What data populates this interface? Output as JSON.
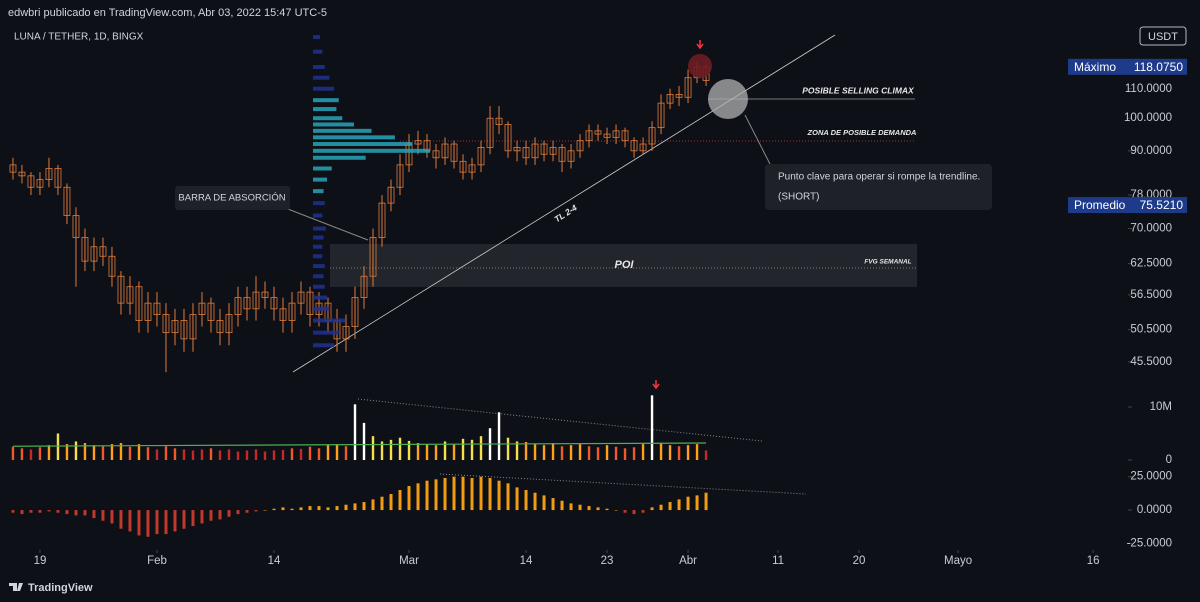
{
  "header": "edwbri publicado en TradingView.com, Abr 03, 2022 15:47 UTC-5",
  "footer": "TradingView",
  "annotations": {
    "selling_climax": "POSIBLE SELLING CLIMAX",
    "demand_zone": "ZONA DE POSIBLE DEMANDA",
    "callout": "Punto clave para operar si rompe la trendline.",
    "callout_note": "(SHORT)",
    "absorption": "BARRA DE ABSORCIÓN",
    "trendline": "TL 2-4",
    "poi": "POI",
    "fvg": "FVG SEMANAL"
  },
  "chart_data": [
    {
      "type": "candlestick",
      "title": "LUNA / TETHER, 1D, BINGX",
      "currency": "USDT",
      "color": "#e07b39",
      "log_scale": true,
      "x": [
        0,
        1,
        2,
        3,
        4,
        5,
        6,
        7,
        8,
        9,
        10,
        11,
        12,
        13,
        14,
        15,
        16,
        17,
        18,
        19,
        20,
        21,
        22,
        23,
        24,
        25,
        26,
        27,
        28,
        29,
        30,
        31,
        32,
        33,
        34,
        35,
        36,
        37,
        38,
        39,
        40,
        41,
        42,
        43,
        44,
        45,
        46,
        47,
        48,
        49,
        50,
        51,
        52,
        53,
        54,
        55,
        56,
        57,
        58,
        59,
        60,
        61,
        62,
        63,
        64,
        65,
        66,
        67,
        68,
        69,
        70,
        71,
        72,
        73,
        74,
        75,
        76,
        77
      ],
      "open": [
        86,
        84,
        83,
        80,
        82,
        85,
        80,
        73,
        68,
        63,
        66,
        64,
        60,
        55,
        58,
        52,
        55,
        53,
        50,
        52,
        49,
        53,
        55,
        52,
        50,
        53,
        56,
        54,
        57,
        56,
        54,
        52,
        55,
        57,
        53,
        55,
        52,
        49,
        51,
        56,
        60,
        68,
        76,
        80,
        86,
        92,
        93,
        90,
        88,
        92,
        87,
        84,
        86,
        91,
        100,
        98,
        90,
        91,
        88,
        92,
        89,
        91,
        87,
        90,
        93,
        96,
        95,
        94,
        96,
        93,
        90,
        92,
        97,
        105,
        108,
        107,
        114,
        118
      ],
      "high": [
        88,
        86,
        84,
        84,
        88,
        86,
        81,
        75,
        70,
        68,
        68,
        66,
        61,
        60,
        59,
        57,
        57,
        55,
        54,
        54,
        55,
        57,
        56,
        54,
        55,
        58,
        58,
        60,
        59,
        58,
        56,
        57,
        59,
        58,
        57,
        56,
        54,
        53,
        58,
        62,
        70,
        78,
        82,
        89,
        95,
        96,
        95,
        92,
        94,
        93,
        89,
        88,
        93,
        104,
        104,
        99,
        93,
        93,
        94,
        93,
        93,
        92,
        92,
        95,
        98,
        98,
        97,
        98,
        97,
        94,
        94,
        99,
        108,
        110,
        111,
        117,
        120,
        119
      ],
      "low": [
        82,
        81,
        78,
        78,
        80,
        78,
        71,
        58,
        61,
        61,
        62,
        58,
        53,
        53,
        50,
        50,
        51,
        44,
        48,
        47,
        47,
        51,
        50,
        48,
        48,
        51,
        52,
        52,
        54,
        52,
        50,
        50,
        53,
        51,
        51,
        50,
        47,
        47,
        49,
        54,
        58,
        66,
        74,
        78,
        84,
        89,
        88,
        85,
        86,
        85,
        82,
        82,
        84,
        89,
        95,
        88,
        87,
        86,
        86,
        87,
        87,
        84,
        85,
        88,
        91,
        93,
        92,
        92,
        91,
        88,
        89,
        90,
        95,
        103,
        104,
        105,
        112,
        111
      ],
      "close": [
        84,
        83,
        80,
        82,
        85,
        80,
        73,
        68,
        63,
        66,
        64,
        60,
        55,
        58,
        52,
        55,
        53,
        50,
        52,
        49,
        53,
        55,
        52,
        50,
        53,
        56,
        54,
        57,
        56,
        54,
        52,
        55,
        57,
        53,
        55,
        52,
        49,
        51,
        56,
        60,
        68,
        76,
        80,
        86,
        92,
        93,
        90,
        88,
        92,
        87,
        84,
        86,
        91,
        100,
        98,
        90,
        91,
        88,
        92,
        89,
        91,
        87,
        90,
        93,
        96,
        95,
        94,
        96,
        93,
        90,
        92,
        97,
        105,
        108,
        107,
        114,
        118,
        113
      ],
      "ylim": [
        43.6,
        133
      ],
      "yticks": [
        {
          "value": 110,
          "label": "110.0000"
        },
        {
          "value": 100,
          "label": "100.0000"
        },
        {
          "value": 90,
          "label": "90.0000"
        },
        {
          "value": 78,
          "label": "78.0000"
        },
        {
          "value": 70,
          "label": "70.0000"
        },
        {
          "value": 62.5,
          "label": "62.5000"
        },
        {
          "value": 56.5,
          "label": "56.5000"
        },
        {
          "value": 50.5,
          "label": "50.5000"
        },
        {
          "value": 45.5,
          "label": "45.5000"
        }
      ],
      "xlim": [
        -1.44,
        124.1
      ],
      "xticks": [
        {
          "value": 3,
          "label": "19"
        },
        {
          "value": 16,
          "label": "Feb"
        },
        {
          "value": 29,
          "label": "14"
        },
        {
          "value": 44,
          "label": "Mar"
        },
        {
          "value": 57,
          "label": "14"
        },
        {
          "value": 66,
          "label": "23"
        },
        {
          "value": 75,
          "label": "Abr"
        },
        {
          "value": 85,
          "label": "11"
        },
        {
          "value": 94,
          "label": "20"
        },
        {
          "value": 105,
          "label": "Mayo"
        },
        {
          "value": 120,
          "label": "16"
        }
      ],
      "reference_lines": [
        {
          "name": "Máximo",
          "value": 118.075,
          "value_label": "118.0750",
          "color": "#1e3a8a"
        },
        {
          "name": "Promedio",
          "value": 75.521,
          "value_label": "75.5210",
          "color": "#1e3a8a"
        }
      ]
    },
    {
      "type": "volume-profile",
      "prices": [
        48,
        50,
        52,
        54,
        56,
        58,
        60,
        62,
        64,
        66,
        68,
        70,
        73,
        76,
        79,
        82,
        85,
        88,
        90,
        92,
        94,
        96,
        98,
        100,
        103,
        106,
        110,
        114,
        118,
        124,
        130
      ],
      "values": [
        18,
        22,
        28,
        14,
        12,
        10,
        9,
        10,
        8,
        8,
        9,
        11,
        8,
        10,
        9,
        12,
        16,
        45,
        100,
        85,
        70,
        50,
        35,
        25,
        20,
        22,
        18,
        14,
        10,
        8,
        6
      ],
      "colors": [
        "#1e3192",
        "#1e3192",
        "#1e3192",
        "#1e3192",
        "#1e3192",
        "#1e3192",
        "#1e3192",
        "#1e3192",
        "#1e3192",
        "#1e3192",
        "#1e3192",
        "#1e3192",
        "#1e3192",
        "#1e3192",
        "#26a5b8",
        "#26a5b8",
        "#26a5b8",
        "#26a5b8",
        "#26a5b8",
        "#26a5b8",
        "#26a5b8",
        "#26a5b8",
        "#26a5b8",
        "#26a5b8",
        "#26a5b8",
        "#26a5b8",
        "#1e3192",
        "#1e3192",
        "#1e3192",
        "#1e3192",
        "#1e3192"
      ],
      "xlim": [
        0,
        100
      ]
    },
    {
      "type": "volume",
      "x": [
        0,
        1,
        2,
        3,
        4,
        5,
        6,
        7,
        8,
        9,
        10,
        11,
        12,
        13,
        14,
        15,
        16,
        17,
        18,
        19,
        20,
        21,
        22,
        23,
        24,
        25,
        26,
        27,
        28,
        29,
        30,
        31,
        32,
        33,
        34,
        35,
        36,
        37,
        38,
        39,
        40,
        41,
        42,
        43,
        44,
        45,
        46,
        47,
        48,
        49,
        50,
        51,
        52,
        53,
        54,
        55,
        56,
        57,
        58,
        59,
        60,
        61,
        62,
        63,
        64,
        65,
        66,
        67,
        68,
        69,
        70,
        71,
        72,
        73,
        74,
        75,
        76,
        77
      ],
      "values": [
        2.5,
        2.2,
        2.0,
        2.4,
        2.8,
        5.0,
        3.0,
        3.5,
        3.2,
        2.8,
        2.6,
        3.0,
        3.2,
        2.5,
        3.0,
        2.4,
        2.0,
        2.6,
        2.2,
        2.0,
        1.8,
        2.0,
        2.2,
        1.8,
        2.0,
        1.6,
        1.8,
        2.0,
        1.6,
        1.8,
        1.9,
        2.2,
        2.1,
        2.5,
        2.2,
        2.8,
        3.0,
        2.6,
        10.5,
        7.0,
        4.5,
        3.5,
        3.8,
        4.2,
        3.6,
        3.2,
        3.0,
        2.8,
        3.5,
        3.0,
        4.0,
        3.8,
        4.5,
        6.0,
        9.0,
        4.2,
        3.5,
        3.4,
        3.0,
        2.8,
        3.2,
        2.6,
        2.8,
        3.0,
        2.6,
        2.4,
        2.8,
        2.5,
        2.2,
        2.4,
        3.0,
        12.2,
        3.2,
        2.8,
        2.6,
        2.8,
        3.0,
        1.8
      ],
      "colors": [
        "#c62828",
        "#f0592a",
        "#ff9f1a",
        "#f4e04d",
        "#ffffff"
      ],
      "moving_average": {
        "x": [
          0,
          38,
          77
        ],
        "values": [
          2.6,
          2.9,
          3.2
        ],
        "color": "#4caf50"
      },
      "ylim": [
        0,
        12.26
      ],
      "yticks": [
        {
          "value": 10,
          "label": "10M"
        },
        0
      ]
    },
    {
      "type": "histogram",
      "x": [
        0,
        1,
        2,
        3,
        4,
        5,
        6,
        7,
        8,
        9,
        10,
        11,
        12,
        13,
        14,
        15,
        16,
        17,
        18,
        19,
        20,
        21,
        22,
        23,
        24,
        25,
        26,
        27,
        28,
        29,
        30,
        31,
        32,
        33,
        34,
        35,
        36,
        37,
        38,
        39,
        40,
        41,
        42,
        43,
        44,
        45,
        46,
        47,
        48,
        49,
        50,
        51,
        52,
        53,
        54,
        55,
        56,
        57,
        58,
        59,
        60,
        61,
        62,
        63,
        64,
        65,
        66,
        67,
        68,
        69,
        70,
        71,
        72,
        73,
        74,
        75,
        76,
        77
      ],
      "values": [
        -2,
        -3,
        -2,
        -2,
        -1,
        -2,
        -3,
        -4,
        -4,
        -6,
        -8,
        -10,
        -14,
        -16,
        -19,
        -20,
        -18,
        -18,
        -16,
        -14,
        -12,
        -10,
        -8,
        -7,
        -5,
        -3,
        -2,
        -1,
        0,
        1,
        2,
        1,
        2,
        3,
        3,
        2,
        3,
        4,
        5,
        6,
        8,
        10,
        12,
        15,
        18,
        20,
        22,
        23,
        24,
        25,
        25,
        24,
        25,
        24,
        22,
        20,
        17,
        15,
        13,
        11,
        9,
        7,
        5,
        4,
        3,
        2,
        1,
        0,
        -2,
        -3,
        -2,
        2,
        4,
        6,
        8,
        10,
        11,
        13
      ],
      "positive_color": "#f39c12",
      "negative_color": "#c0392b",
      "ylim": [
        -28.4,
        31.5
      ],
      "yticks": [
        {
          "value": 25,
          "label": "25.0000"
        },
        {
          "value": 0,
          "label": "0.0000"
        },
        {
          "value": -25,
          "label": "-25.0000"
        }
      ]
    }
  ]
}
